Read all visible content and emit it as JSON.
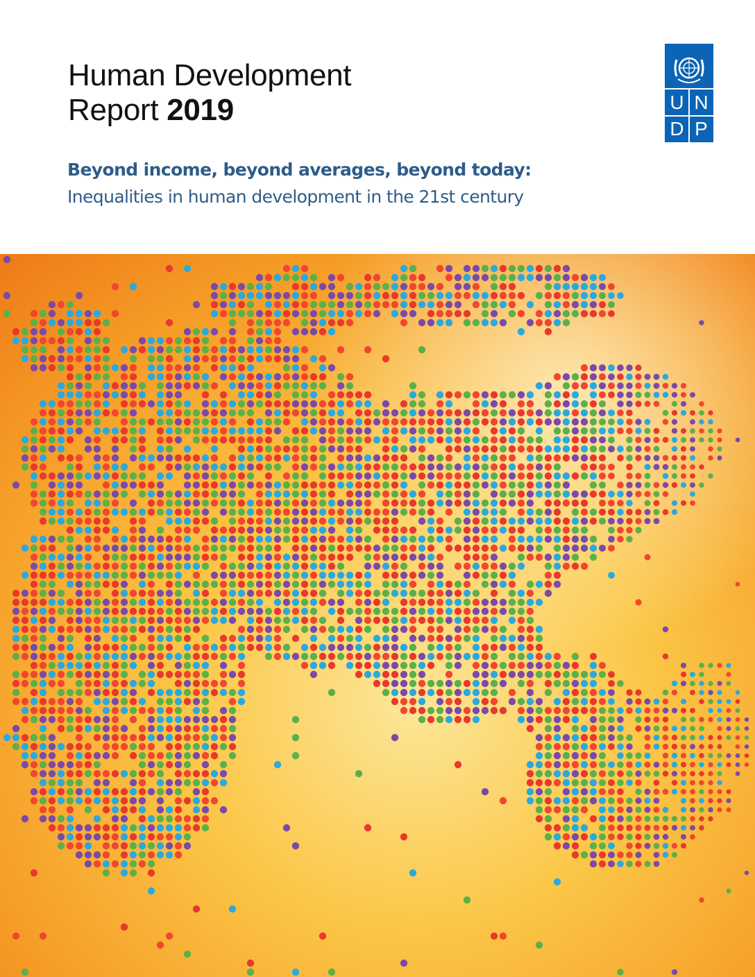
{
  "title": {
    "line1": "Human Development",
    "line2_word": "Report",
    "line2_year": "2019"
  },
  "subtitle": {
    "line1": "Beyond income, beyond averages, beyond today:",
    "line2": "Inequalities in human development in the 21st century"
  },
  "logo": {
    "letters": [
      "U",
      "N",
      "D",
      "P"
    ],
    "color": "#0b64b5"
  },
  "art": {
    "dot_colors": [
      "#f0472f",
      "#e8392c",
      "#5bb04a",
      "#2aa9df",
      "#7b4aa8"
    ],
    "background": [
      "#f07a1a",
      "#f9b52e",
      "#fde28a"
    ]
  }
}
